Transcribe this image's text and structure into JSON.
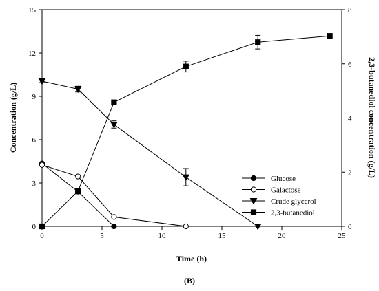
{
  "chart_data": {
    "type": "line",
    "panel_label": "(B)",
    "xlabel": "Time (h)",
    "ylabel_left": "Concentration (g/L)",
    "ylabel_right": "2,3-butanediol concentration (g/L)",
    "xlim": [
      0,
      25
    ],
    "ylim_left": [
      0,
      15
    ],
    "ylim_right": [
      0,
      8
    ],
    "x_ticks": [
      "0",
      "5",
      "10",
      "15",
      "20",
      "25"
    ],
    "y_left_ticks": [
      "0",
      "3",
      "6",
      "9",
      "12",
      "15"
    ],
    "y_right_ticks": [
      "0",
      "2",
      "4",
      "6",
      "8"
    ],
    "grid": false,
    "legend_position": "lower-right",
    "series": [
      {
        "name": "Glucose",
        "axis": "left",
        "marker": "filled-circle",
        "x": [
          0,
          3,
          6
        ],
        "y": [
          4.35,
          2.4,
          0.0
        ],
        "err": [
          0,
          0,
          0
        ]
      },
      {
        "name": "Galactose",
        "axis": "left",
        "marker": "open-circle",
        "x": [
          0,
          3,
          6,
          12
        ],
        "y": [
          4.25,
          3.45,
          0.65,
          0.0
        ],
        "err": [
          0,
          0,
          0,
          0
        ]
      },
      {
        "name": "Crude glycerol",
        "axis": "left",
        "marker": "filled-triangle-down",
        "x": [
          0,
          3,
          6,
          12,
          18
        ],
        "y": [
          10.05,
          9.5,
          7.05,
          3.4,
          0.0
        ],
        "err": [
          0.1,
          0.2,
          0.25,
          0.6,
          0
        ]
      },
      {
        "name": "2,3-butanediol",
        "axis": "right",
        "marker": "filled-square",
        "x": [
          0,
          3,
          6,
          12,
          18,
          24
        ],
        "y": [
          0.0,
          1.3,
          4.58,
          5.9,
          6.8,
          7.03
        ],
        "err": [
          0,
          0.1,
          0.06,
          0.2,
          0.25,
          0.05
        ]
      }
    ]
  }
}
